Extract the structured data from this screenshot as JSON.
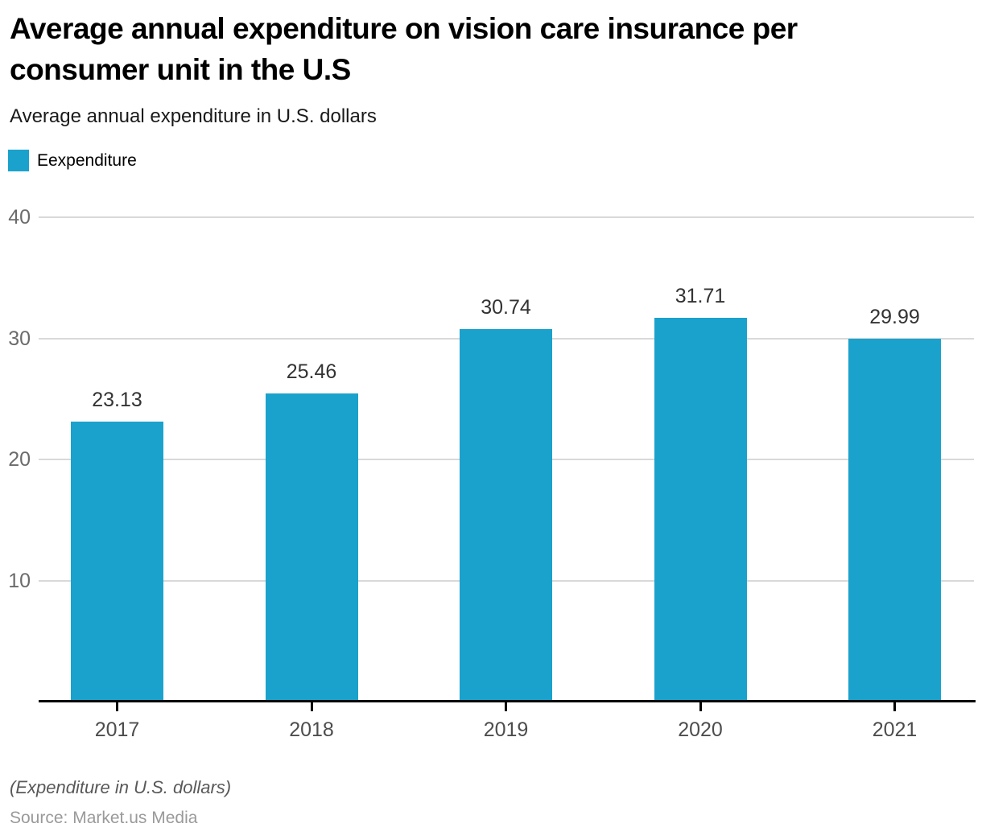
{
  "header": {
    "title_lines": [
      "Average annual expenditure on vision care insurance per",
      "consumer unit in the U.S"
    ],
    "subtitle": "Average annual expenditure in U.S. dollars"
  },
  "legend": {
    "label": "Eexpenditure"
  },
  "colors": {
    "accent": "#1aa2cc",
    "gridline": "#d9d9d9",
    "axis_line": "#000000",
    "value_label": "#333333",
    "tick_label": "#6b6b6b"
  },
  "chart_data": {
    "type": "bar",
    "title": "Average annual expenditure on vision care insurance per consumer unit in the U.S",
    "subtitle": "Average annual expenditure in U.S. dollars",
    "series_name": "Eexpenditure",
    "categories": [
      "2017",
      "2018",
      "2019",
      "2020",
      "2021"
    ],
    "values": [
      23.13,
      25.46,
      30.74,
      31.71,
      29.99
    ],
    "value_labels": [
      "23.13",
      "25.46",
      "30.74",
      "31.71",
      "29.99"
    ],
    "xlabel": "",
    "ylabel": "",
    "ylim": [
      0,
      40
    ],
    "yticks": [
      40,
      30,
      20,
      10
    ],
    "grid": "horizontal",
    "legend_position": "top-left",
    "bar_color": "#1aa2cc"
  },
  "footer": {
    "note": "(Expenditure in U.S. dollars)",
    "source": "Source: Market.us Media"
  }
}
